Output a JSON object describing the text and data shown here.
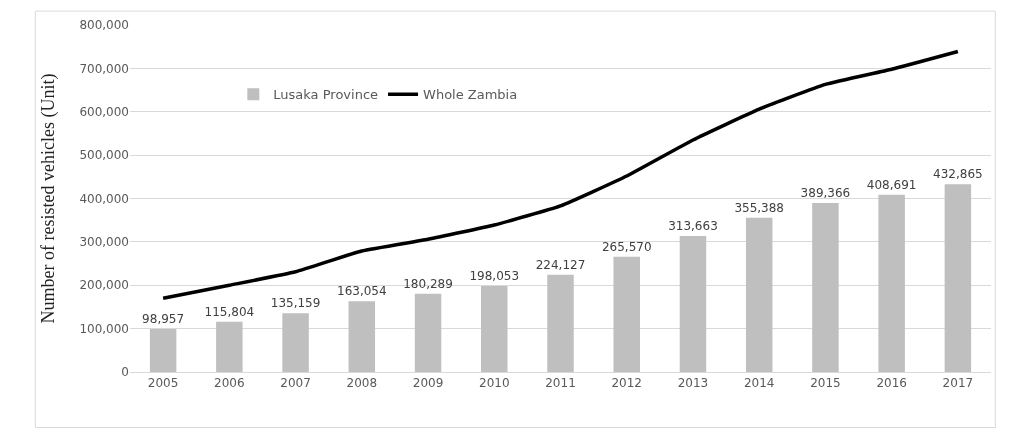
{
  "chart_data": {
    "type": "bar",
    "ylabel": "Number of resisted vehicles (Unit)",
    "categories": [
      "2005",
      "2006",
      "2007",
      "2008",
      "2009",
      "2010",
      "2011",
      "2012",
      "2013",
      "2014",
      "2015",
      "2016",
      "2017"
    ],
    "series": [
      {
        "name": "Lusaka Province",
        "color": "#bfbfbf",
        "values": [
          98957,
          115804,
          135159,
          163054,
          180289,
          198053,
          224127,
          265570,
          313663,
          355388,
          389366,
          408691,
          432865
        ],
        "value_labels": [
          "98,957",
          "115,804",
          "135,159",
          "163,054",
          "180,289",
          "198,053",
          "224,127",
          "265,570",
          "313,663",
          "355,388",
          "389,366",
          "408,691",
          "432,865"
        ]
      },
      {
        "name": "Whole Zambia",
        "type": "line",
        "color": "#000000",
        "values": [
          170000,
          200000,
          231000,
          279000,
          306000,
          339000,
          383000,
          452000,
          535000,
          606000,
          663000,
          698000,
          739000
        ]
      }
    ],
    "ylim": [
      0,
      800000
    ],
    "yticks": [
      0,
      {
        "value": 100000,
        "label": "100,000"
      },
      {
        "value": 200000,
        "label": "200,000"
      },
      {
        "value": 300000,
        "label": "300,000"
      },
      {
        "value": 400000,
        "label": "400,000"
      },
      {
        "value": 500000,
        "label": "500,000"
      },
      {
        "value": 600000,
        "label": "600,000"
      },
      {
        "value": 700000,
        "label": "700,000"
      },
      {
        "value": 800000,
        "label": "800,000"
      }
    ],
    "grid": "y",
    "legend": "top left",
    "marker": "none"
  }
}
